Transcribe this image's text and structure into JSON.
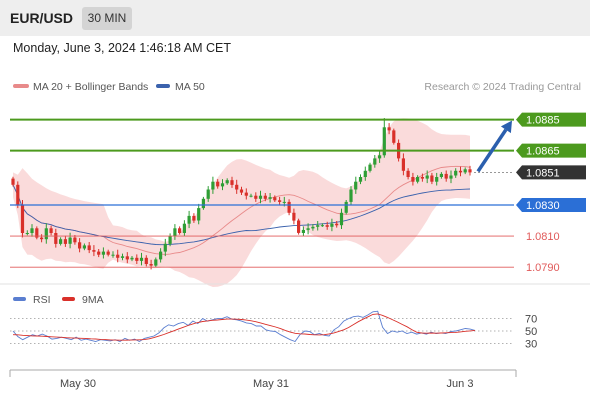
{
  "header": {
    "pair": "EUR/USD",
    "timeframe": "30 MIN",
    "datetime": "Monday, June 3, 2024 1:46:18 AM CET"
  },
  "legend": {
    "ma20": "MA 20 + Bollinger Bands",
    "ma50": "MA 50",
    "credit": "Research © 2024 Trading Central",
    "rsi": "RSI",
    "rsi_ma": "9MA"
  },
  "colors": {
    "up": "#2e9e35",
    "down": "#d9302a",
    "bands": "#f9d5d5",
    "ma20": "#e88a8a",
    "ma50": "#3b62ad",
    "resistance": "#4c9a1e",
    "pivot": "#2b6fd6",
    "support": "#e05a5a",
    "current": "#333333",
    "arrow": "#2b5fae",
    "rsi": "#5a7ed0",
    "rsi_ma": "#d9302a"
  },
  "chart_data": [
    {
      "type": "candlestick",
      "levels": [
        {
          "value": 1.0885,
          "kind": "resistance",
          "label": "1.0885"
        },
        {
          "value": 1.0865,
          "kind": "resistance",
          "label": "1.0865"
        },
        {
          "value": 1.0851,
          "kind": "current",
          "label": "1.0851"
        },
        {
          "value": 1.083,
          "kind": "pivot",
          "label": "1.0830"
        },
        {
          "value": 1.081,
          "kind": "support",
          "label": "1.0810"
        },
        {
          "value": 1.079,
          "kind": "support",
          "label": "1.0790"
        }
      ],
      "forecast": {
        "from": 1.0851,
        "to": 1.0885
      },
      "x_labels": [
        "May 30",
        "May 31",
        "Jun 3"
      ],
      "close": [
        1.0843,
        1.083,
        1.0812,
        1.0812,
        1.0815,
        1.0809,
        1.0808,
        1.0815,
        1.0812,
        1.0805,
        1.0808,
        1.0805,
        1.0809,
        1.0806,
        1.0802,
        1.0804,
        1.0801,
        1.08,
        1.0798,
        1.08,
        1.0798,
        1.0798,
        1.0796,
        1.0797,
        1.0795,
        1.0796,
        1.0794,
        1.0796,
        1.0792,
        1.0791,
        1.0795,
        1.08,
        1.0805,
        1.081,
        1.0815,
        1.0812,
        1.0818,
        1.0823,
        1.082,
        1.0828,
        1.0834,
        1.084,
        1.0845,
        1.0842,
        1.0844,
        1.0846,
        1.0843,
        1.084,
        1.0838,
        1.0836,
        1.0836,
        1.0834,
        1.0836,
        1.0834,
        1.0835,
        1.0833,
        1.0832,
        1.0832,
        1.0825,
        1.082,
        1.0812,
        1.0814,
        1.0815,
        1.0816,
        1.0817,
        1.0817,
        1.0816,
        1.0818,
        1.0817,
        1.0825,
        1.0832,
        1.084,
        1.0845,
        1.0848,
        1.0852,
        1.0856,
        1.086,
        1.0862,
        1.088,
        1.0878,
        1.087,
        1.086,
        1.0852,
        1.0848,
        1.0845,
        1.0848,
        1.0847,
        1.0849,
        1.0845,
        1.0848,
        1.085,
        1.0847,
        1.0849,
        1.0852,
        1.0851,
        1.0853,
        1.0851
      ],
      "y_range": [
        1.07843,
        1.08976
      ]
    },
    {
      "type": "line",
      "title": "RSI",
      "ticks": [
        70,
        50,
        30
      ],
      "series": [
        {
          "name": "RSI",
          "values": [
            50,
            41,
            36,
            40,
            44,
            42,
            45,
            42,
            37,
            38,
            40,
            38,
            36,
            40,
            35,
            37,
            35,
            33,
            36,
            35,
            34,
            36,
            33,
            38,
            35,
            37,
            33,
            38,
            40,
            42,
            47,
            55,
            60,
            58,
            62,
            64,
            59,
            66,
            62,
            70,
            66,
            68,
            70,
            70,
            73,
            69,
            68,
            66,
            63,
            62,
            58,
            58,
            52,
            50,
            49,
            44,
            40,
            36,
            33,
            44,
            50,
            49,
            44,
            46,
            43,
            42,
            52,
            57,
            66,
            70,
            73,
            74,
            72,
            76,
            81,
            82,
            56,
            46,
            50,
            48,
            50,
            46,
            48,
            45,
            47,
            45,
            48,
            46,
            47,
            46,
            49,
            50,
            52,
            54,
            53,
            51
          ]
        },
        {
          "name": "9MA",
          "values": [
            44.0,
            43.8,
            43.1,
            42.5,
            42.1,
            41.9,
            41.6,
            41.1,
            40.6,
            40.2,
            39.8,
            39.2,
            38.9,
            38.5,
            38.3,
            38.0,
            37.5,
            37.1,
            36.5,
            36.1,
            35.7,
            35.4,
            35.1,
            35.2,
            35.4,
            35.6,
            35.8,
            36.2,
            37.5,
            39.3,
            41.7,
            44.4,
            47.3,
            50.2,
            53.1,
            55.9,
            58.8,
            61.4,
            63.7,
            65.3,
            66.3,
            67.3,
            67.8,
            68.6,
            69.2,
            69.2,
            69.1,
            68.6,
            67.6,
            66.5,
            64.9,
            62.7,
            60.7,
            58.6,
            56.4,
            53.9,
            51.0,
            48.2,
            46.3,
            45.5,
            45.2,
            44.4,
            43.9,
            43.7,
            44.1,
            45.3,
            47.0,
            49.4,
            52.0,
            55.7,
            60.3,
            65.0,
            69.0,
            72.9,
            76.7,
            77.6,
            75.1,
            71.9,
            68.4,
            64.6,
            60.7,
            56.9,
            52.2,
            48.1,
            46.8,
            46.5,
            46.8,
            46.5,
            46.8,
            47.1,
            47.4,
            47.8,
            48.6,
            49.5,
            50.2,
            51.0
          ]
        }
      ],
      "ylim": [
        0,
        100
      ]
    }
  ]
}
